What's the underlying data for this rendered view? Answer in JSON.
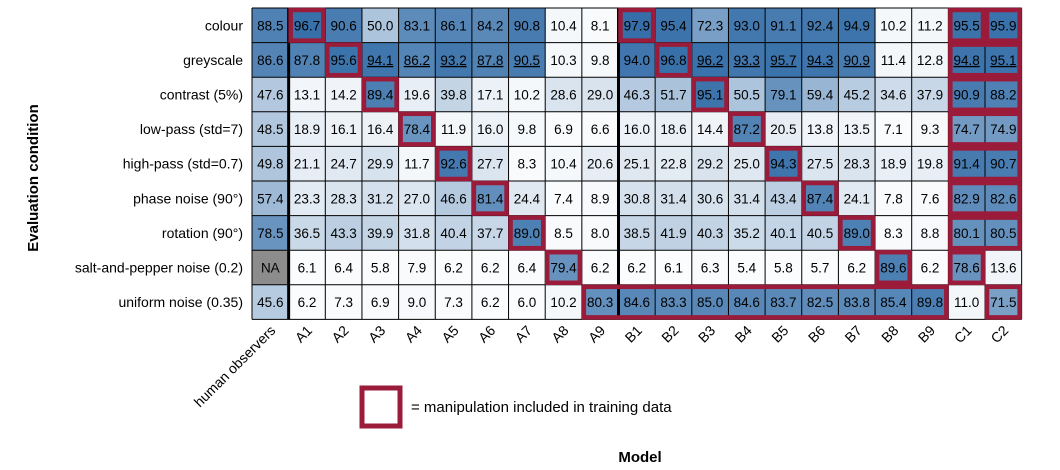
{
  "chart_data": {
    "type": "heatmap",
    "xlabel": "Model",
    "ylabel": "Evaluation condition",
    "columns": [
      "human observers",
      "A1",
      "A2",
      "A3",
      "A4",
      "A5",
      "A6",
      "A7",
      "A8",
      "A9",
      "B1",
      "B2",
      "B3",
      "B4",
      "B5",
      "B6",
      "B7",
      "B8",
      "B9",
      "C1",
      "C2"
    ],
    "rows": [
      "colour",
      "greyscale",
      "contrast (5%)",
      "low-pass (std=7)",
      "high-pass (std=0.7)",
      "phase noise (90°)",
      "rotation (90°)",
      "salt-and-pepper noise (0.2)",
      "uniform noise (0.35)"
    ],
    "values": [
      [
        88.5,
        96.7,
        90.6,
        50.0,
        83.1,
        86.1,
        84.2,
        90.8,
        10.4,
        8.1,
        97.9,
        95.4,
        72.3,
        93.0,
        91.1,
        92.4,
        94.9,
        10.2,
        11.2,
        95.5,
        95.9
      ],
      [
        86.6,
        87.8,
        95.6,
        94.1,
        86.2,
        93.2,
        87.8,
        90.5,
        10.3,
        9.8,
        94.0,
        96.8,
        96.2,
        93.3,
        95.7,
        94.3,
        90.9,
        11.4,
        12.8,
        94.8,
        95.1
      ],
      [
        47.6,
        13.1,
        14.2,
        89.4,
        19.6,
        39.8,
        17.1,
        10.2,
        28.6,
        29.0,
        46.3,
        51.7,
        95.1,
        50.5,
        79.1,
        59.4,
        45.2,
        34.6,
        37.9,
        90.9,
        88.2
      ],
      [
        48.5,
        18.9,
        16.1,
        16.4,
        78.4,
        11.9,
        16.0,
        9.8,
        6.9,
        6.6,
        16.0,
        18.6,
        14.4,
        87.2,
        20.5,
        13.8,
        13.5,
        7.1,
        9.3,
        74.7,
        74.9
      ],
      [
        49.8,
        21.1,
        24.7,
        29.9,
        11.7,
        92.6,
        27.7,
        8.3,
        10.4,
        20.6,
        25.1,
        22.8,
        29.2,
        25.0,
        94.3,
        27.5,
        28.3,
        18.9,
        19.8,
        91.4,
        90.7
      ],
      [
        57.4,
        23.3,
        28.3,
        31.2,
        27.0,
        46.6,
        81.4,
        24.4,
        7.4,
        8.9,
        30.8,
        31.4,
        30.6,
        31.4,
        43.4,
        87.4,
        24.1,
        7.8,
        7.6,
        82.9,
        82.6
      ],
      [
        78.5,
        36.5,
        43.3,
        39.9,
        31.8,
        40.4,
        37.7,
        89.0,
        8.5,
        8.0,
        38.5,
        41.9,
        40.3,
        35.2,
        40.1,
        40.5,
        89.0,
        8.3,
        8.8,
        80.1,
        80.5
      ],
      [
        "NA",
        6.1,
        6.4,
        5.8,
        7.9,
        6.2,
        6.2,
        6.4,
        79.4,
        6.2,
        6.2,
        6.1,
        6.3,
        5.4,
        5.8,
        5.7,
        6.2,
        89.6,
        6.2,
        78.6,
        13.6
      ],
      [
        45.6,
        6.2,
        7.3,
        6.9,
        9.0,
        7.3,
        6.2,
        6.0,
        10.2,
        80.3,
        84.6,
        83.3,
        85.0,
        84.6,
        83.7,
        82.5,
        83.8,
        85.4,
        89.8,
        11.0,
        71.5
      ]
    ],
    "underlined_row": "greyscale",
    "underlined_columns": [
      "A3",
      "A4",
      "A5",
      "A6",
      "A7",
      "B3",
      "B4",
      "B5",
      "B6",
      "B7",
      "C1",
      "C2"
    ],
    "training_highlight_runs": [
      {
        "row": "colour",
        "from": "A1",
        "to": "A1"
      },
      {
        "row": "colour",
        "from": "B1",
        "to": "B1"
      },
      {
        "row": "colour",
        "from": "C2",
        "to": "C2"
      },
      {
        "row": "greyscale",
        "from": "A2",
        "to": "A2"
      },
      {
        "row": "greyscale",
        "from": "B2",
        "to": "B2"
      },
      {
        "row": "contrast (5%)",
        "from": "A3",
        "to": "A3"
      },
      {
        "row": "contrast (5%)",
        "from": "B3",
        "to": "B3"
      },
      {
        "row": "low-pass (std=7)",
        "from": "A4",
        "to": "A4"
      },
      {
        "row": "low-pass (std=7)",
        "from": "B4",
        "to": "B4"
      },
      {
        "row": "high-pass (std=0.7)",
        "from": "A5",
        "to": "A5"
      },
      {
        "row": "high-pass (std=0.7)",
        "from": "B5",
        "to": "B5"
      },
      {
        "row": "phase noise (90°)",
        "from": "A6",
        "to": "A6"
      },
      {
        "row": "phase noise (90°)",
        "from": "B6",
        "to": "B6"
      },
      {
        "row": "rotation (90°)",
        "from": "A7",
        "to": "A7"
      },
      {
        "row": "rotation (90°)",
        "from": "B7",
        "to": "B7"
      },
      {
        "row": "salt-and-pepper noise (0.2)",
        "from": "A8",
        "to": "A8"
      },
      {
        "row": "salt-and-pepper noise (0.2)",
        "from": "B8",
        "to": "B8"
      },
      {
        "row": "uniform noise (0.35)",
        "from": "A9",
        "to": "B9"
      },
      {
        "row": "colour",
        "from": "C1",
        "to": "C1"
      },
      {
        "row": "greyscale",
        "from": "C1",
        "to": "C2"
      },
      {
        "row": "contrast (5%)",
        "from": "C1",
        "to": "C2"
      },
      {
        "row": "low-pass (std=7)",
        "from": "C1",
        "to": "C2"
      },
      {
        "row": "high-pass (std=0.7)",
        "from": "C1",
        "to": "C2"
      },
      {
        "row": "phase noise (90°)",
        "from": "C1",
        "to": "C2"
      },
      {
        "row": "rotation (90°)",
        "from": "C1",
        "to": "C2"
      },
      {
        "row": "salt-and-pepper noise (0.2)",
        "from": "C1",
        "to": "C1"
      },
      {
        "row": "uniform noise (0.35)",
        "from": "C2",
        "to": "C2"
      }
    ],
    "legend": {
      "label": "= manipulation included in training data",
      "placement": "bottom-center"
    },
    "colors": {
      "scale_low": "#ffffff",
      "scale_high": "#2f6aa6",
      "na_cell": "#8c8c8c",
      "highlight_border": "#9b1b3a",
      "grid": "#000000",
      "text": "#000000"
    }
  }
}
